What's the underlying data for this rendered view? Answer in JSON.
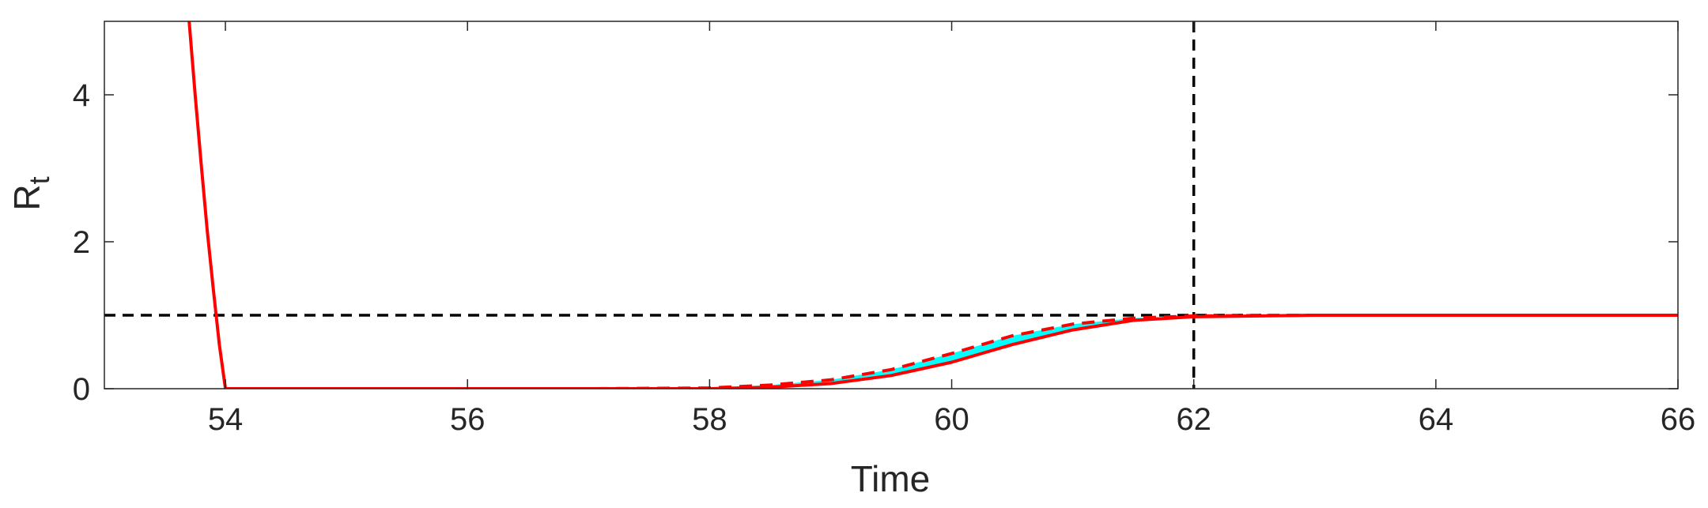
{
  "chart_data": {
    "type": "line",
    "title": "",
    "xlabel": "Time",
    "ylabel": "R",
    "ylabel_subscript": "t",
    "xlim": [
      53,
      66
    ],
    "ylim": [
      0,
      5
    ],
    "xticks": [
      "54",
      "56",
      "58",
      "60",
      "62",
      "64",
      "66"
    ],
    "xtick_values": [
      54,
      56,
      58,
      60,
      62,
      64,
      66
    ],
    "yticks": [
      "0",
      "2",
      "4"
    ],
    "ytick_values": [
      0,
      2,
      4
    ],
    "grid": false,
    "legend": "none",
    "series": [
      {
        "style": "solid",
        "color": "#ff0000",
        "x": [
          53.7,
          53.75,
          53.8,
          53.85,
          53.9,
          53.95,
          54.0,
          55,
          56,
          57,
          58,
          58.5,
          59.0,
          59.5,
          60.0,
          60.5,
          61.0,
          61.5,
          62.0,
          63,
          64,
          65,
          66
        ],
        "y": [
          5.0,
          4.0,
          3.05,
          2.15,
          1.35,
          0.6,
          0.0,
          0.0,
          0.0,
          0.0,
          0.0,
          0.02,
          0.07,
          0.18,
          0.36,
          0.6,
          0.8,
          0.93,
          0.98,
          1.0,
          1.0,
          1.0,
          1.0
        ]
      },
      {
        "style": "dashed",
        "color": "#ff0000",
        "x": [
          54.0,
          56,
          57,
          58.0,
          58.5,
          59.0,
          59.5,
          60.0,
          60.5,
          61.0,
          61.5,
          62.0,
          63,
          64,
          65,
          66
        ],
        "y": [
          0.0,
          0.0,
          0.0,
          0.01,
          0.05,
          0.12,
          0.26,
          0.48,
          0.72,
          0.88,
          0.96,
          0.99,
          1.0,
          1.0,
          1.0,
          1.0
        ]
      }
    ],
    "band": {
      "color": "#00ffff",
      "x": [
        58.0,
        58.5,
        59.0,
        59.5,
        60.0,
        60.5,
        61.0,
        61.5,
        62.0
      ],
      "upper": [
        0.01,
        0.05,
        0.12,
        0.26,
        0.48,
        0.72,
        0.88,
        0.96,
        0.99
      ],
      "lower": [
        0.0,
        0.02,
        0.07,
        0.18,
        0.36,
        0.6,
        0.8,
        0.93,
        0.98
      ]
    },
    "reference_lines": [
      {
        "orientation": "horizontal",
        "value": 1,
        "style": "dashed",
        "color": "#000000"
      },
      {
        "orientation": "vertical",
        "value": 62,
        "style": "dashed",
        "color": "#000000"
      }
    ]
  }
}
